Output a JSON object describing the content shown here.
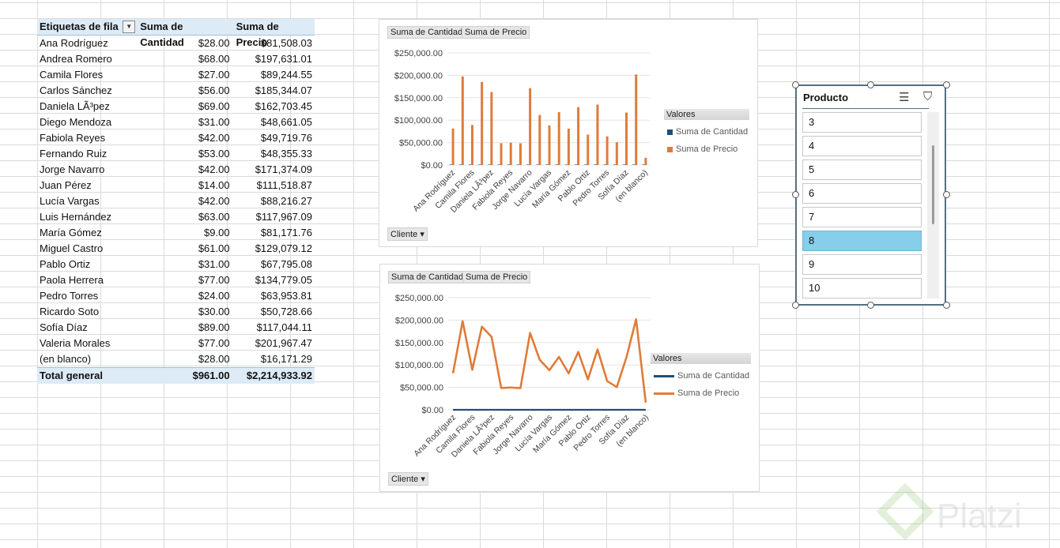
{
  "pivot": {
    "headers": [
      "Etiquetas de fila",
      "Suma de Cantidad",
      "Suma de Precio"
    ],
    "rows": [
      [
        "Ana Rodríguez",
        "$28.00",
        "$81,508.03"
      ],
      [
        "Andrea Romero",
        "$68.00",
        "$197,631.01"
      ],
      [
        "Camila Flores",
        "$27.00",
        "$89,244.55"
      ],
      [
        "Carlos Sánchez",
        "$56.00",
        "$185,344.07"
      ],
      [
        "Daniela LÃ³pez",
        "$69.00",
        "$162,703.45"
      ],
      [
        "Diego Mendoza",
        "$31.00",
        "$48,661.05"
      ],
      [
        "Fabiola Reyes",
        "$42.00",
        "$49,719.76"
      ],
      [
        "Fernando Ruiz",
        "$53.00",
        "$48,355.33"
      ],
      [
        "Jorge Navarro",
        "$42.00",
        "$171,374.09"
      ],
      [
        "Juan Pérez",
        "$14.00",
        "$111,518.87"
      ],
      [
        "Lucía Vargas",
        "$42.00",
        "$88,216.27"
      ],
      [
        "Luis Hernández",
        "$63.00",
        "$117,967.09"
      ],
      [
        "María Gómez",
        "$9.00",
        "$81,171.76"
      ],
      [
        "Miguel Castro",
        "$61.00",
        "$129,079.12"
      ],
      [
        "Pablo Ortiz",
        "$31.00",
        "$67,795.08"
      ],
      [
        "Paola Herrera",
        "$77.00",
        "$134,779.05"
      ],
      [
        "Pedro Torres",
        "$24.00",
        "$63,953.81"
      ],
      [
        "Ricardo Soto",
        "$30.00",
        "$50,728.66"
      ],
      [
        "Sofía Díaz",
        "$89.00",
        "$117,044.11"
      ],
      [
        "Valeria Morales",
        "$77.00",
        "$201,967.47"
      ],
      [
        "(en blanco)",
        "$28.00",
        "$16,171.29"
      ]
    ],
    "total": [
      "Total general",
      "$961.00",
      "$2,214,933.92"
    ]
  },
  "field_buttons": {
    "cantidad": "Suma de Cantidad",
    "precio": "Suma de Precio",
    "cliente": "Cliente"
  },
  "legend": {
    "title": "Valores",
    "items": [
      "Suma de Cantidad",
      "Suma de Precio"
    ]
  },
  "slicer": {
    "title": "Producto",
    "items": [
      "3",
      "4",
      "5",
      "6",
      "7",
      "8",
      "9",
      "10"
    ],
    "selected": "8"
  },
  "watermark": "Platzi",
  "colors": {
    "cantidad": "#1f4e79",
    "precio": "#e07b39"
  },
  "chart_data": [
    {
      "type": "bar",
      "title": "",
      "categories": [
        "Ana Rodríguez",
        "Andrea Romero",
        "Camila Flores",
        "Carlos Sánchez",
        "Daniela LÃ³pez",
        "Diego Mendoza",
        "Fabiola Reyes",
        "Fernando Ruiz",
        "Jorge Navarro",
        "Juan Pérez",
        "Lucía Vargas",
        "Luis Hernández",
        "María Gómez",
        "Miguel Castro",
        "Pablo Ortiz",
        "Paola Herrera",
        "Pedro Torres",
        "Ricardo Soto",
        "Sofía Díaz",
        "Valeria Morales",
        "(en blanco)"
      ],
      "tick_labels": [
        "Ana Rodríguez",
        "Camila Flores",
        "Daniela LÃ³pez",
        "Fabiola Reyes",
        "Jorge Navarro",
        "Lucía Vargas",
        "María Gómez",
        "Pablo Ortiz",
        "Pedro Torres",
        "Sofía Díaz",
        "(en blanco)"
      ],
      "series": [
        {
          "name": "Suma de Cantidad",
          "values": [
            28,
            68,
            27,
            56,
            69,
            31,
            42,
            53,
            42,
            14,
            42,
            63,
            9,
            61,
            31,
            77,
            24,
            30,
            89,
            77,
            28
          ]
        },
        {
          "name": "Suma de Precio",
          "values": [
            81508.03,
            197631.01,
            89244.55,
            185344.07,
            162703.45,
            48661.05,
            49719.76,
            48355.33,
            171374.09,
            111518.87,
            88216.27,
            117967.09,
            81171.76,
            129079.12,
            67795.08,
            134779.05,
            63953.81,
            50728.66,
            117044.11,
            201967.47,
            16171.29
          ]
        }
      ],
      "y_ticks": [
        "$0.00",
        "$50,000.00",
        "$100,000.00",
        "$150,000.00",
        "$200,000.00",
        "$250,000.00"
      ],
      "ylim": [
        0,
        250000
      ],
      "legend_position": "right"
    },
    {
      "type": "line",
      "title": "",
      "categories": [
        "Ana Rodríguez",
        "Andrea Romero",
        "Camila Flores",
        "Carlos Sánchez",
        "Daniela LÃ³pez",
        "Diego Mendoza",
        "Fabiola Reyes",
        "Fernando Ruiz",
        "Jorge Navarro",
        "Juan Pérez",
        "Lucía Vargas",
        "Luis Hernández",
        "María Gómez",
        "Miguel Castro",
        "Pablo Ortiz",
        "Paola Herrera",
        "Pedro Torres",
        "Ricardo Soto",
        "Sofía Díaz",
        "Valeria Morales",
        "(en blanco)"
      ],
      "tick_labels": [
        "Ana Rodríguez",
        "Camila Flores",
        "Daniela LÃ³pez",
        "Fabiola Reyes",
        "Jorge Navarro",
        "Lucía Vargas",
        "María Gómez",
        "Pablo Ortiz",
        "Pedro Torres",
        "Sofía Díaz",
        "(en blanco)"
      ],
      "series": [
        {
          "name": "Suma de Cantidad",
          "values": [
            28,
            68,
            27,
            56,
            69,
            31,
            42,
            53,
            42,
            14,
            42,
            63,
            9,
            61,
            31,
            77,
            24,
            30,
            89,
            77,
            28
          ]
        },
        {
          "name": "Suma de Precio",
          "values": [
            81508.03,
            197631.01,
            89244.55,
            185344.07,
            162703.45,
            48661.05,
            49719.76,
            48355.33,
            171374.09,
            111518.87,
            88216.27,
            117967.09,
            81171.76,
            129079.12,
            67795.08,
            134779.05,
            63953.81,
            50728.66,
            117044.11,
            201967.47,
            16171.29
          ]
        }
      ],
      "y_ticks": [
        "$0.00",
        "$50,000.00",
        "$100,000.00",
        "$150,000.00",
        "$200,000.00",
        "$250,000.00"
      ],
      "ylim": [
        0,
        250000
      ],
      "legend_position": "right"
    }
  ]
}
